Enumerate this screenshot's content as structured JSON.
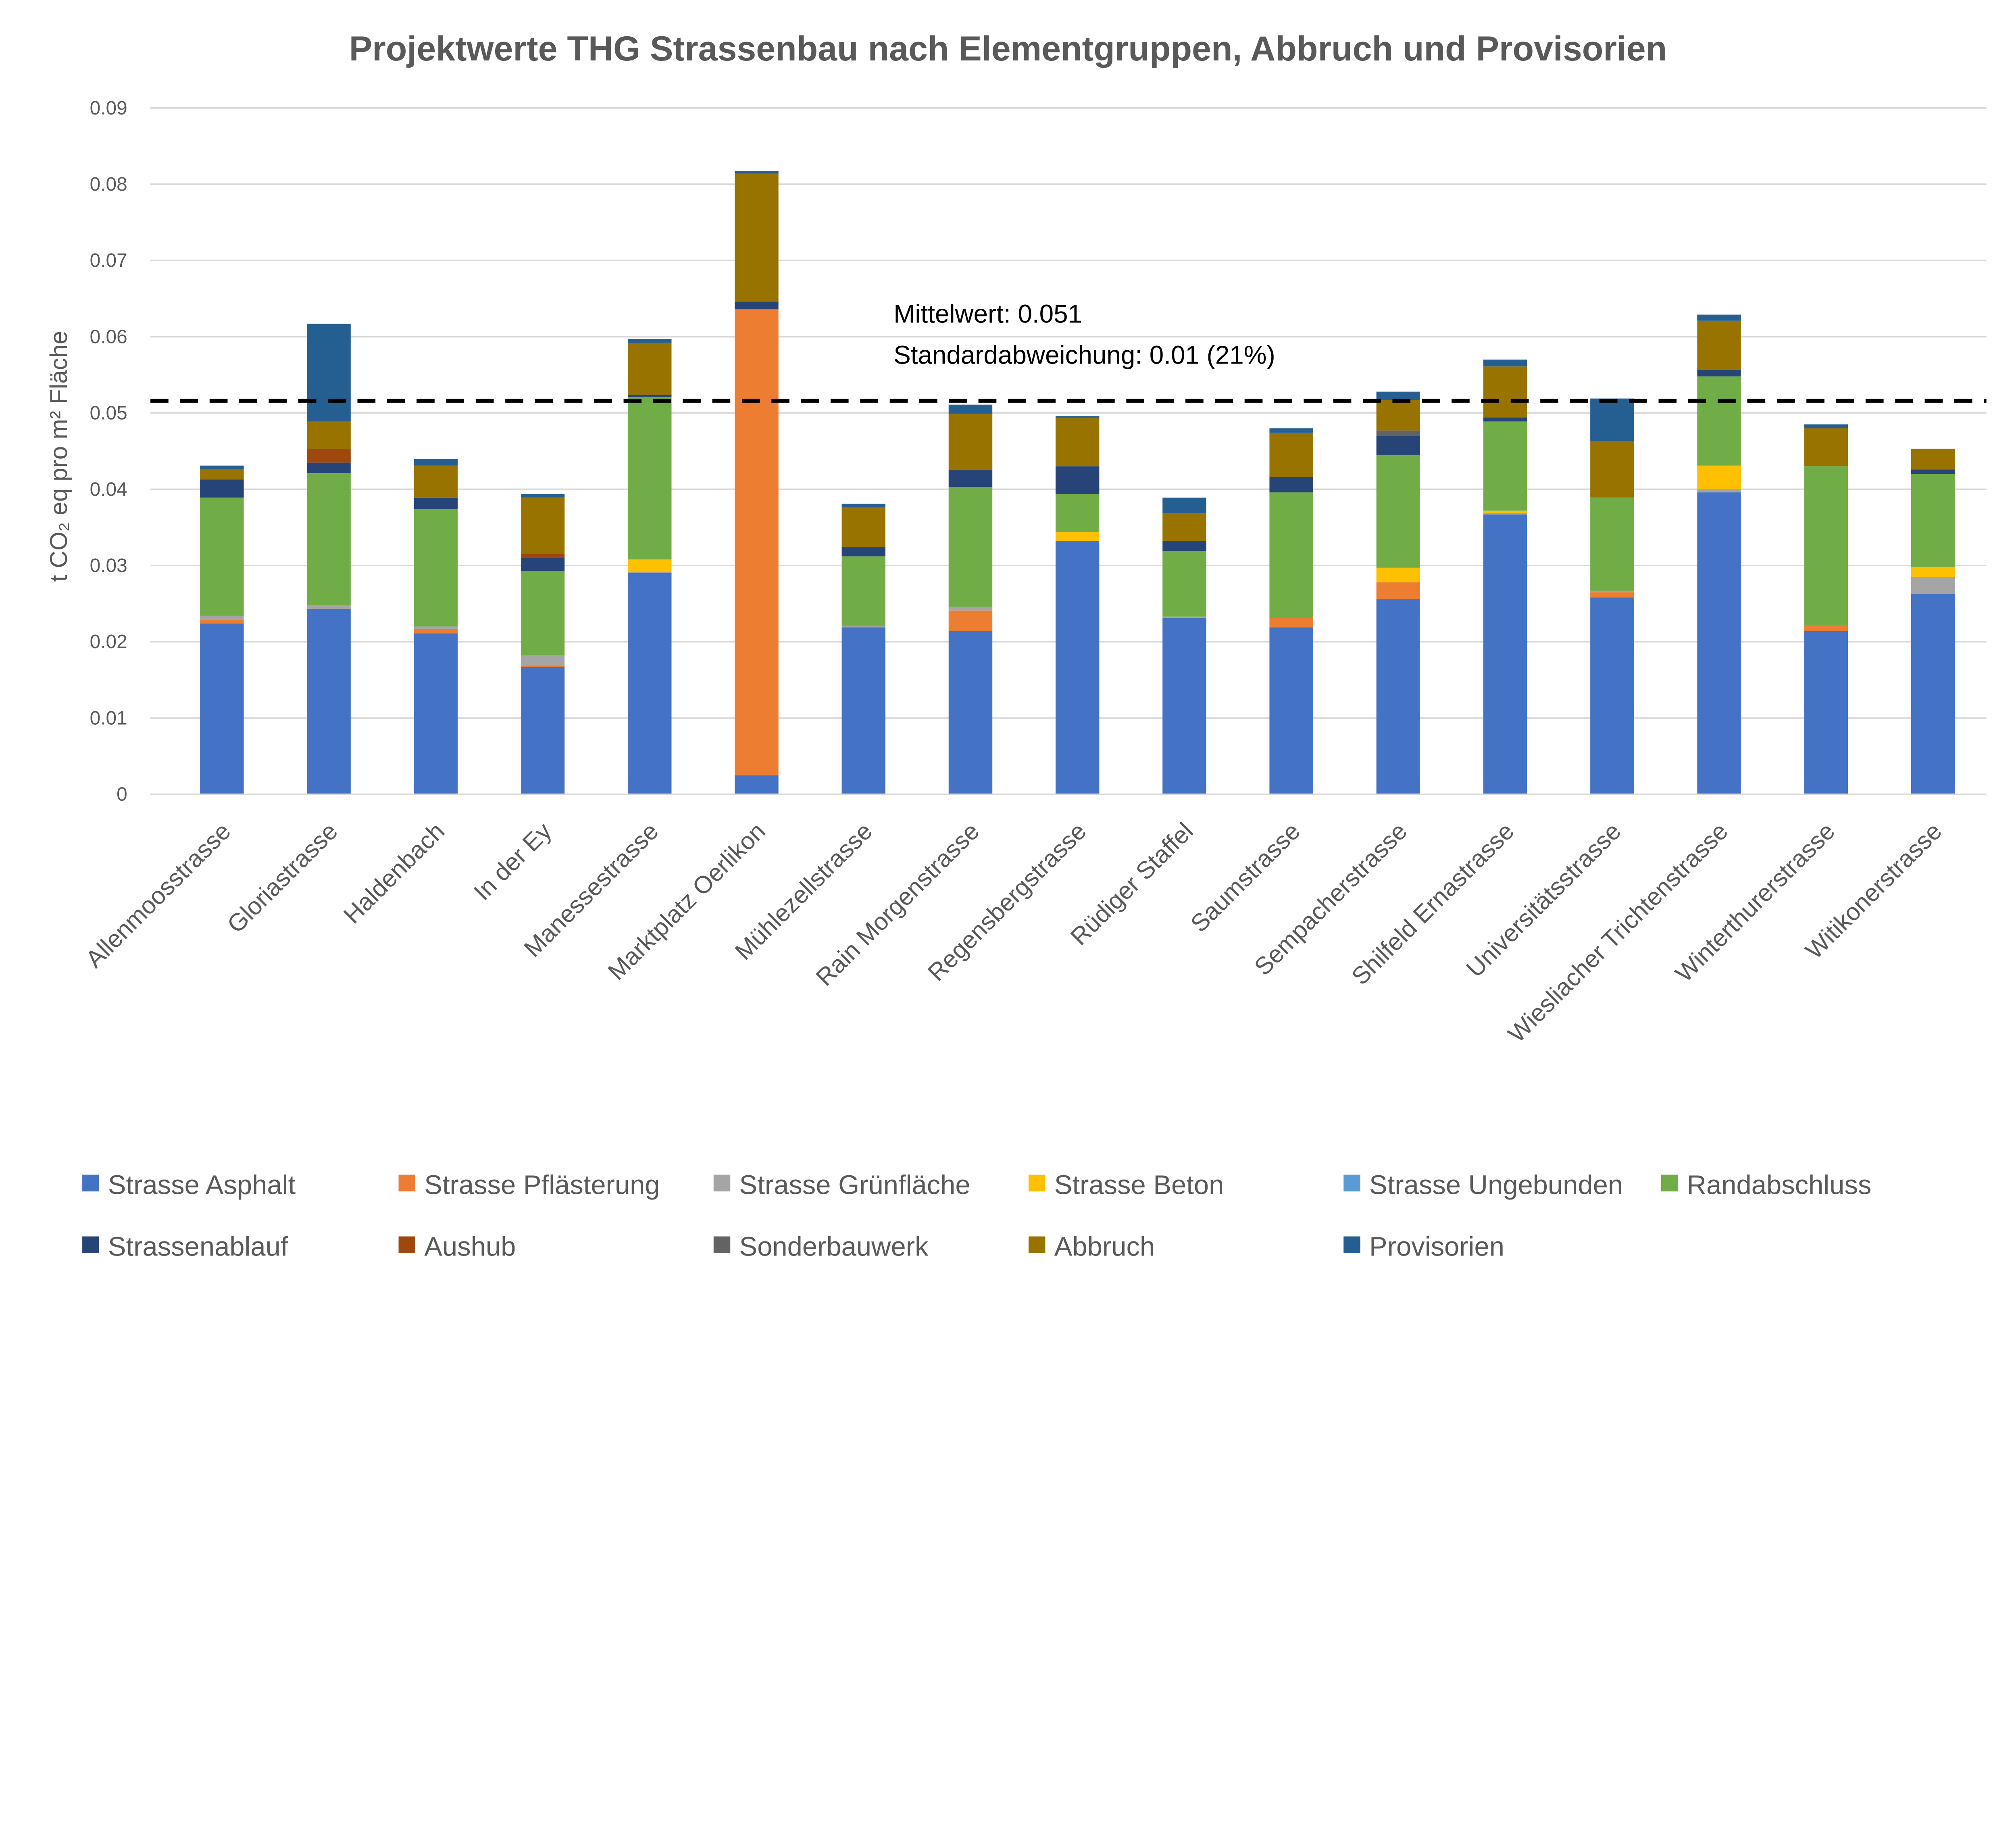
{
  "chart_data": {
    "type": "bar",
    "stacked": true,
    "title": "Projektwerte THG Strassenbau nach Elementgruppen, Abbruch und Provisorien",
    "xlabel": "",
    "ylabel": "t CO₂ eq pro m² Fläche",
    "ylim": [
      0,
      0.09
    ],
    "yticks": [
      "0",
      "0.01",
      "0.02",
      "0.03",
      "0.04",
      "0.05",
      "0.06",
      "0.07",
      "0.08",
      "0.09"
    ],
    "grid": true,
    "legend_position": "bottom",
    "categories": [
      "Allenmoosstrasse",
      "Gloriastrasse",
      "Haldenbach",
      "In der Ey",
      "Manessestrasse",
      "Marktplatz Oerlikon",
      "Mühlezellstrasse",
      "Rain Morgenstrasse",
      "Regensbergstrasse",
      "Rüdiger Staffel",
      "Saumstrasse",
      "Sempacherstrasse",
      "Shilfeld Ernastrasse",
      "Universitätsstrasse",
      "Wiesliacher Trichtenstrasse",
      "Winterthurerstrasse",
      "Witikonerstrasse"
    ],
    "series": [
      {
        "name": "Strasse Asphalt",
        "color": "#4472C4",
        "values": [
          0.0224,
          0.0243,
          0.0211,
          0.0167,
          0.029,
          0.0025,
          0.0219,
          0.0214,
          0.0332,
          0.0231,
          0.0219,
          0.0256,
          0.0367,
          0.0258,
          0.0396,
          0.0214,
          0.0263
        ]
      },
      {
        "name": "Strasse Pflästerung",
        "color": "#ED7D31",
        "values": [
          0.0005,
          0,
          0.0006,
          0.0001,
          0,
          0.0611,
          0,
          0.0027,
          0,
          0,
          0.0012,
          0.0022,
          0,
          0.0007,
          0,
          0.0008,
          0
        ]
      },
      {
        "name": "Strasse Grünfläche",
        "color": "#A5A5A5",
        "values": [
          0.0005,
          0.0005,
          0.0003,
          0.0014,
          0.0002,
          0,
          0.0002,
          0.0005,
          0,
          0.0002,
          0,
          0,
          0.0002,
          0.0002,
          0.0004,
          0,
          0.0022
        ]
      },
      {
        "name": "Strasse Beton",
        "color": "#FFC000",
        "values": [
          0,
          0,
          0,
          0,
          0.0016,
          0,
          0,
          0,
          0.0012,
          0,
          0,
          0.0019,
          0.0003,
          0,
          0.0031,
          0,
          0.0013
        ]
      },
      {
        "name": "Strasse Ungebunden",
        "color": "#5B9BD5",
        "values": [
          0,
          0,
          0,
          0,
          0,
          0,
          0,
          0,
          0,
          0,
          0,
          0,
          0,
          0,
          0,
          0,
          0
        ]
      },
      {
        "name": "Randabschluss",
        "color": "#70AD47",
        "values": [
          0.0155,
          0.0173,
          0.0154,
          0.0111,
          0.0213,
          0,
          0.0091,
          0.0157,
          0.005,
          0.0086,
          0.0165,
          0.0148,
          0.0117,
          0.0122,
          0.0117,
          0.0208,
          0.0122
        ]
      },
      {
        "name": "Strassenablauf",
        "color": "#264478",
        "values": [
          0.0024,
          0.0014,
          0.0015,
          0.0017,
          0.0003,
          0.001,
          0.0012,
          0.0022,
          0.0036,
          0.0013,
          0.002,
          0.0025,
          0.0005,
          0,
          0.0009,
          0,
          0.0006
        ]
      },
      {
        "name": "Aushub",
        "color": "#9E480E",
        "values": [
          0,
          0.0018,
          0,
          0.0005,
          0,
          0,
          0,
          0,
          0,
          0,
          0,
          0,
          0,
          0,
          0,
          0,
          0
        ]
      },
      {
        "name": "Sonderbauwerk",
        "color": "#636363",
        "values": [
          0,
          0,
          0,
          0,
          0,
          0,
          0,
          0,
          0,
          0,
          0,
          0.0007,
          0,
          0,
          0,
          0,
          0
        ]
      },
      {
        "name": "Abbruch",
        "color": "#997300",
        "values": [
          0.0013,
          0.0036,
          0.0042,
          0.0074,
          0.0068,
          0.0168,
          0.0052,
          0.0074,
          0.0064,
          0.0037,
          0.0058,
          0.004,
          0.0067,
          0.0074,
          0.0064,
          0.005,
          0.0027
        ]
      },
      {
        "name": "Provisorien",
        "color": "#255E91",
        "values": [
          0.0005,
          0.0128,
          0.0009,
          0.0005,
          0.0005,
          0.0003,
          0.0005,
          0.0012,
          0.0002,
          0.002,
          0.0006,
          0.0011,
          0.0009,
          0.0056,
          0.0008,
          0.0005,
          0
        ]
      }
    ],
    "reference_line": {
      "value": 0.0516,
      "style": "dashed",
      "color": "#000000"
    },
    "annotations": [
      "Mittelwert: 0.051",
      "Standardabweichung: 0.01 (21%)"
    ]
  }
}
